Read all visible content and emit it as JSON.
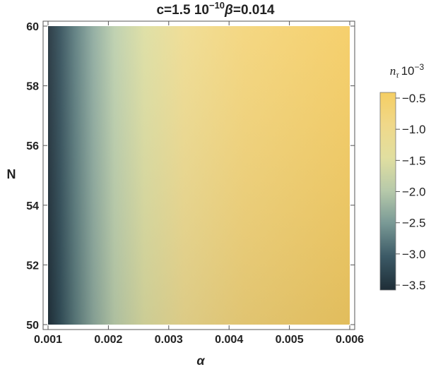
{
  "chart_data": {
    "type": "heatmap",
    "title": "c=1.5 10",
    "title_exp": "−10",
    "title_beta_symbol": "β",
    "title_beta_value": "=0.014",
    "xlabel": "α",
    "ylabel": "N",
    "xlim": [
      0.001,
      0.006
    ],
    "ylim": [
      50,
      60
    ],
    "x_ticks": [
      {
        "value": 0.001,
        "label": "0.001"
      },
      {
        "value": 0.002,
        "label": "0.002"
      },
      {
        "value": 0.003,
        "label": "0.003"
      },
      {
        "value": 0.004,
        "label": "0.004"
      },
      {
        "value": 0.005,
        "label": "0.005"
      },
      {
        "value": 0.006,
        "label": "0.006"
      }
    ],
    "y_ticks": [
      {
        "value": 50,
        "label": "50"
      },
      {
        "value": 52,
        "label": "52"
      },
      {
        "value": 54,
        "label": "54"
      },
      {
        "value": 56,
        "label": "56"
      },
      {
        "value": 58,
        "label": "58"
      },
      {
        "value": 60,
        "label": "60"
      }
    ],
    "colorbar": {
      "title_base": "n",
      "title_sub": "τ",
      "title_scale": "10",
      "title_scale_exp": "−3",
      "range": [
        -3.5,
        -0.5
      ],
      "ticks": [
        {
          "value": -0.5,
          "label": "−0.5"
        },
        {
          "value": -1.0,
          "label": "−1.0"
        },
        {
          "value": -1.5,
          "label": "−1.5"
        },
        {
          "value": -2.0,
          "label": "−2.0"
        },
        {
          "value": -2.5,
          "label": "−2.5"
        },
        {
          "value": -3.0,
          "label": "−3.0"
        },
        {
          "value": -3.5,
          "label": "−3.5"
        }
      ],
      "colors": [
        "#1e2d37",
        "#3c5a66",
        "#7a9a96",
        "#b6c9aa",
        "#e1dfa0",
        "#f0d889",
        "#f5ce63"
      ]
    },
    "grid": false
  }
}
